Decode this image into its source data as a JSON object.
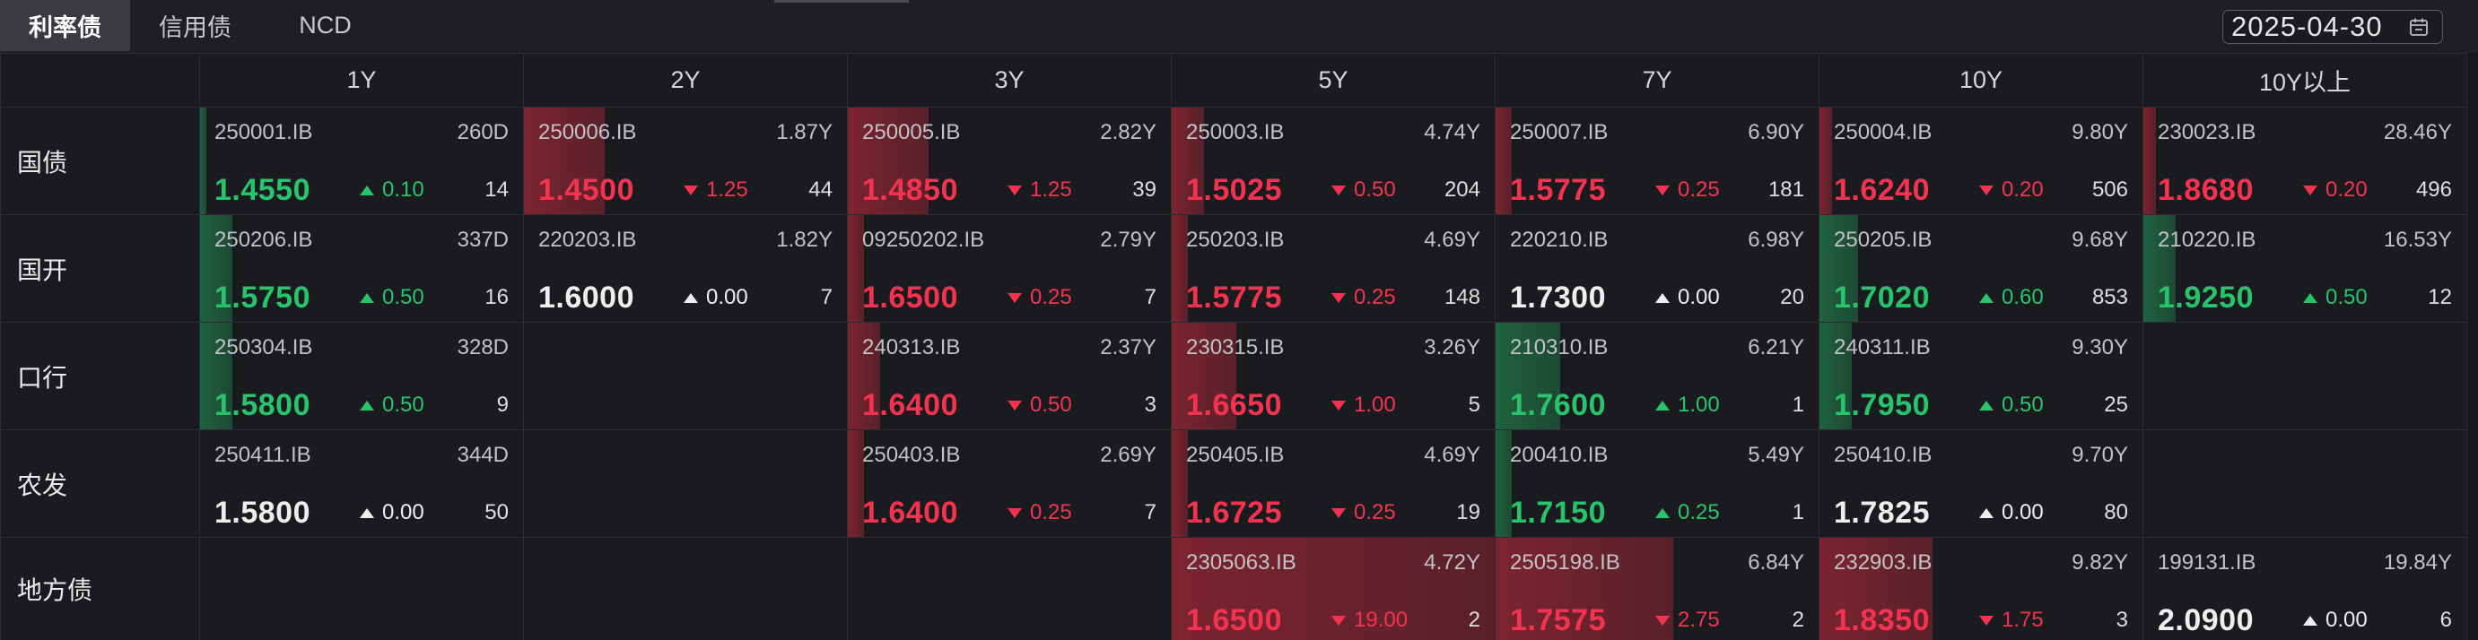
{
  "tabs": [
    {
      "label": "利率债"
    },
    {
      "label": "信用债"
    },
    {
      "label": "NCD"
    }
  ],
  "active_tab": 0,
  "date_picker": {
    "value": "2025-04-30",
    "icon": "calendar-icon"
  },
  "colors": {
    "up": "#27c46c",
    "down": "#f5334f",
    "flat": "#eeeeee",
    "up_bar": "#23aa5f",
    "down_bar": "#dc2d41"
  },
  "columns": [
    "1Y",
    "2Y",
    "3Y",
    "5Y",
    "7Y",
    "10Y",
    "10Y以上"
  ],
  "rows": [
    {
      "label": "国债",
      "cells": [
        {
          "code": "250001.IB",
          "term": "260D",
          "yield": "1.4550",
          "icon": "triangle-up-icon",
          "change": "0.10",
          "count": "14"
        },
        {
          "code": "250006.IB",
          "term": "1.87Y",
          "yield": "1.4500",
          "icon": "triangle-down-icon",
          "change": "1.25",
          "count": "44"
        },
        {
          "code": "250005.IB",
          "term": "2.82Y",
          "yield": "1.4850",
          "icon": "triangle-down-icon",
          "change": "1.25",
          "count": "39"
        },
        {
          "code": "250003.IB",
          "term": "4.74Y",
          "yield": "1.5025",
          "icon": "triangle-down-icon",
          "change": "0.50",
          "count": "204"
        },
        {
          "code": "250007.IB",
          "term": "6.90Y",
          "yield": "1.5775",
          "icon": "triangle-down-icon",
          "change": "0.25",
          "count": "181"
        },
        {
          "code": "250004.IB",
          "term": "9.80Y",
          "yield": "1.6240",
          "icon": "triangle-down-icon",
          "change": "0.20",
          "count": "506"
        },
        {
          "code": "230023.IB",
          "term": "28.46Y",
          "yield": "1.8680",
          "icon": "triangle-down-icon",
          "change": "0.20",
          "count": "496"
        }
      ]
    },
    {
      "label": "国开",
      "cells": [
        {
          "code": "250206.IB",
          "term": "337D",
          "yield": "1.5750",
          "icon": "triangle-up-icon",
          "change": "0.50",
          "count": "16"
        },
        {
          "code": "220203.IB",
          "term": "1.82Y",
          "yield": "1.6000",
          "icon": "triangle-up-icon",
          "change": "0.00",
          "count": "7"
        },
        {
          "code": "09250202.IB",
          "term": "2.79Y",
          "yield": "1.6500",
          "icon": "triangle-down-icon",
          "change": "0.25",
          "count": "7"
        },
        {
          "code": "250203.IB",
          "term": "4.69Y",
          "yield": "1.5775",
          "icon": "triangle-down-icon",
          "change": "0.25",
          "count": "148"
        },
        {
          "code": "220210.IB",
          "term": "6.98Y",
          "yield": "1.7300",
          "icon": "triangle-up-icon",
          "change": "0.00",
          "count": "20"
        },
        {
          "code": "250205.IB",
          "term": "9.68Y",
          "yield": "1.7020",
          "icon": "triangle-up-icon",
          "change": "0.60",
          "count": "853"
        },
        {
          "code": "210220.IB",
          "term": "16.53Y",
          "yield": "1.9250",
          "icon": "triangle-up-icon",
          "change": "0.50",
          "count": "12"
        }
      ]
    },
    {
      "label": "口行",
      "cells": [
        {
          "code": "250304.IB",
          "term": "328D",
          "yield": "1.5800",
          "icon": "triangle-up-icon",
          "change": "0.50",
          "count": "9"
        },
        null,
        {
          "code": "240313.IB",
          "term": "2.37Y",
          "yield": "1.6400",
          "icon": "triangle-down-icon",
          "change": "0.50",
          "count": "3"
        },
        {
          "code": "230315.IB",
          "term": "3.26Y",
          "yield": "1.6650",
          "icon": "triangle-down-icon",
          "change": "1.00",
          "count": "5"
        },
        {
          "code": "210310.IB",
          "term": "6.21Y",
          "yield": "1.7600",
          "icon": "triangle-up-icon",
          "change": "1.00",
          "count": "1"
        },
        {
          "code": "240311.IB",
          "term": "9.30Y",
          "yield": "1.7950",
          "icon": "triangle-up-icon",
          "change": "0.50",
          "count": "25"
        },
        null
      ]
    },
    {
      "label": "农发",
      "cells": [
        {
          "code": "250411.IB",
          "term": "344D",
          "yield": "1.5800",
          "icon": "triangle-up-icon",
          "change": "0.00",
          "count": "50"
        },
        null,
        {
          "code": "250403.IB",
          "term": "2.69Y",
          "yield": "1.6400",
          "icon": "triangle-down-icon",
          "change": "0.25",
          "count": "7"
        },
        {
          "code": "250405.IB",
          "term": "4.69Y",
          "yield": "1.6725",
          "icon": "triangle-down-icon",
          "change": "0.25",
          "count": "19"
        },
        {
          "code": "200410.IB",
          "term": "5.49Y",
          "yield": "1.7150",
          "icon": "triangle-up-icon",
          "change": "0.25",
          "count": "1"
        },
        {
          "code": "250410.IB",
          "term": "9.70Y",
          "yield": "1.7825",
          "icon": "triangle-up-icon",
          "change": "0.00",
          "count": "80"
        },
        null
      ]
    },
    {
      "label": "地方债",
      "cells": [
        null,
        null,
        null,
        {
          "code": "2305063.IB",
          "term": "4.72Y",
          "yield": "1.6500",
          "icon": "triangle-down-icon",
          "change": "19.00",
          "count": "2"
        },
        {
          "code": "2505198.IB",
          "term": "6.84Y",
          "yield": "1.7575",
          "icon": "triangle-down-icon",
          "change": "2.75",
          "count": "2"
        },
        {
          "code": "232903.IB",
          "term": "9.82Y",
          "yield": "1.8350",
          "icon": "triangle-down-icon",
          "change": "1.75",
          "count": "3"
        },
        {
          "code": "199131.IB",
          "term": "19.84Y",
          "yield": "2.0900",
          "icon": "triangle-up-icon",
          "change": "0.00",
          "count": "6"
        }
      ]
    }
  ]
}
